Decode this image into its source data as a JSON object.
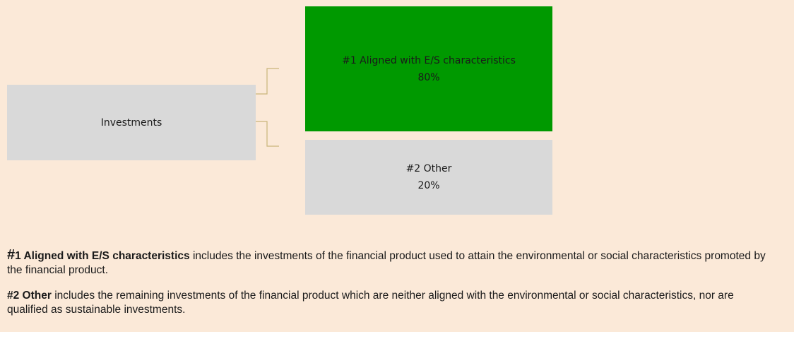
{
  "nodes": [
    {
      "label": "Investments"
    },
    {
      "label": "#1 Aligned with E/S characteristics",
      "share": "80%"
    },
    {
      "label": "#2 Other",
      "share": "20%"
    }
  ],
  "notes": [
    {
      "term": "#1 Aligned with E/S characteristics",
      "text": "includes the investments of the financial product used to attain the environmental or social characteristics promoted by the financial product."
    },
    {
      "term": "#2 Other",
      "text": "includes the remaining investments of the financial product which are neither aligned with the environmental or social characteristics, nor are qualified as sustainable investments."
    }
  ]
}
